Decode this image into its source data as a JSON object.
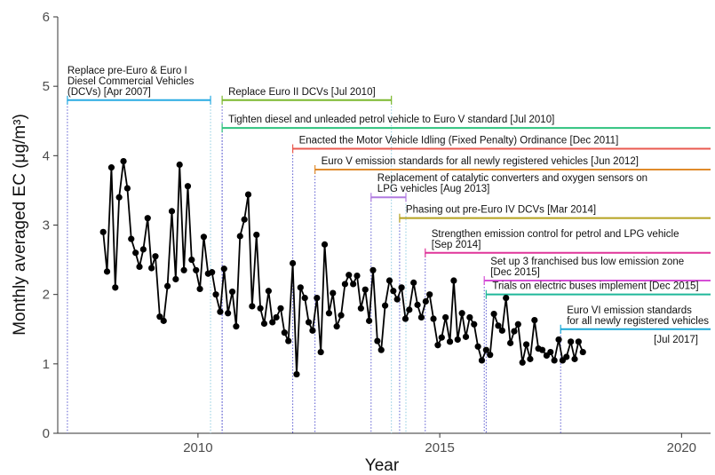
{
  "chart_data": {
    "type": "line",
    "xlabel": "Year",
    "ylabel": "Monthly averaged EC (μg/m³)",
    "xlim": [
      2007.1,
      2020.6
    ],
    "ylim": [
      0,
      6
    ],
    "xticks": [
      2010,
      2015,
      2020
    ],
    "yticks": [
      0,
      1,
      2,
      3,
      4,
      5,
      6
    ],
    "color": "#000000",
    "x": [
      2008.04,
      2008.12,
      2008.21,
      2008.29,
      2008.37,
      2008.46,
      2008.54,
      2008.62,
      2008.71,
      2008.79,
      2008.87,
      2008.96,
      2009.04,
      2009.12,
      2009.21,
      2009.29,
      2009.37,
      2009.46,
      2009.54,
      2009.62,
      2009.71,
      2009.79,
      2009.87,
      2009.96,
      2010.04,
      2010.12,
      2010.21,
      2010.29,
      2010.37,
      2010.46,
      2010.54,
      2010.62,
      2010.71,
      2010.79,
      2010.87,
      2010.96,
      2011.04,
      2011.12,
      2011.21,
      2011.29,
      2011.37,
      2011.46,
      2011.54,
      2011.62,
      2011.71,
      2011.79,
      2011.87,
      2011.96,
      2012.04,
      2012.12,
      2012.21,
      2012.29,
      2012.37,
      2012.46,
      2012.54,
      2012.62,
      2012.71,
      2012.79,
      2012.87,
      2012.96,
      2013.04,
      2013.12,
      2013.21,
      2013.29,
      2013.37,
      2013.46,
      2013.54,
      2013.62,
      2013.71,
      2013.79,
      2013.87,
      2013.96,
      2014.04,
      2014.12,
      2014.21,
      2014.29,
      2014.37,
      2014.46,
      2014.54,
      2014.62,
      2014.71,
      2014.79,
      2014.87,
      2014.96,
      2015.04,
      2015.12,
      2015.21,
      2015.29,
      2015.37,
      2015.46,
      2015.54,
      2015.62,
      2015.71,
      2015.79,
      2015.87,
      2015.96,
      2016.04,
      2016.12,
      2016.21,
      2016.29,
      2016.37,
      2016.46,
      2016.54,
      2016.62,
      2016.71,
      2016.79,
      2016.87,
      2016.96,
      2017.04,
      2017.12,
      2017.21,
      2017.29,
      2017.37,
      2017.46,
      2017.54,
      2017.62,
      2017.71,
      2017.79,
      2017.87,
      2017.96
    ],
    "values": [
      2.9,
      2.33,
      3.83,
      2.1,
      3.4,
      3.92,
      3.53,
      2.8,
      2.6,
      2.4,
      2.65,
      3.1,
      2.38,
      2.55,
      1.68,
      1.62,
      2.12,
      3.2,
      2.22,
      3.87,
      2.35,
      3.56,
      2.5,
      2.35,
      2.08,
      2.83,
      2.3,
      2.32,
      2.0,
      1.75,
      2.37,
      1.73,
      2.04,
      1.54,
      2.84,
      3.08,
      3.44,
      1.83,
      2.86,
      1.8,
      1.58,
      2.05,
      1.6,
      1.67,
      1.8,
      1.45,
      1.33,
      2.45,
      0.85,
      2.1,
      1.95,
      1.6,
      1.48,
      1.95,
      1.17,
      2.72,
      1.73,
      2.02,
      1.54,
      1.7,
      2.15,
      2.28,
      2.15,
      2.27,
      1.8,
      2.07,
      1.62,
      2.35,
      1.33,
      1.2,
      1.84,
      2.2,
      2.05,
      1.93,
      2.1,
      1.65,
      1.78,
      2.17,
      1.85,
      1.67,
      1.9,
      2.0,
      1.65,
      1.27,
      1.38,
      1.67,
      1.32,
      2.2,
      1.35,
      1.73,
      1.39,
      1.67,
      1.57,
      1.25,
      1.05,
      1.2,
      1.13,
      1.72,
      1.55,
      1.48,
      1.95,
      1.3,
      1.47,
      1.57,
      1.02,
      1.28,
      1.07,
      1.63,
      1.22,
      1.2,
      1.12,
      1.17,
      1.05,
      1.35,
      1.05,
      1.1,
      1.32,
      1.07,
      1.32,
      1.17
    ],
    "annotations": [
      {
        "lines": [
          "Replace pre-Euro & Euro I",
          "Diesel Commercial Vehicles",
          "(DCVs) [Apr 2007]"
        ],
        "start": 2007.3,
        "end": 2010.26,
        "y": 4.8,
        "color": "#29abe2"
      },
      {
        "lines": [
          "Replace Euro II DCVs [Jul 2010]"
        ],
        "start": 2010.5,
        "end": 2014.0,
        "y": 4.8,
        "color": "#7cb82f"
      },
      {
        "lines": [
          "Tighten diesel and unleaded petrol vehicle to Euro V standard [Jul 2010]"
        ],
        "start": 2010.5,
        "y": 4.4,
        "color": "#2ec27e"
      },
      {
        "lines": [
          "Enacted the Motor Vehicle Idling (Fixed Penalty) Ordinance [Dec 2011]"
        ],
        "start": 2011.96,
        "y": 4.1,
        "color": "#e9594f"
      },
      {
        "lines": [
          "Euro V emission standards for all newly registered vehicles [Jun 2012]"
        ],
        "start": 2012.42,
        "y": 3.8,
        "color": "#e08b2b"
      },
      {
        "lines": [
          "Replacement of catalytic converters and oxygen sensors on",
          "LPG vehicles [Aug 2013]"
        ],
        "start": 2013.58,
        "end": 2014.3,
        "y": 3.4,
        "color": "#b07ce0"
      },
      {
        "lines": [
          "Phasing out pre-Euro IV DCVs [Mar 2014]"
        ],
        "start": 2014.17,
        "y": 3.1,
        "color": "#b5a21f"
      },
      {
        "lines": [
          "Strengthen emission control for petrol and LPG vehicle",
          "[Sep 2014]"
        ],
        "start": 2014.7,
        "y": 2.6,
        "color": "#e0359a"
      },
      {
        "lines": [
          "Set up 3 franchised bus low emission zone",
          "[Dec 2015]"
        ],
        "start": 2015.92,
        "y": 2.2,
        "color": "#d64fd6"
      },
      {
        "lines": [
          "Trials on electric buses implement [Dec 2015]"
        ],
        "start": 2015.96,
        "y": 2.0,
        "color": "#1fb89a"
      },
      {
        "lines": [
          "Euro VI emission standards",
          "for all newly registered vehicles"
        ],
        "note_right": "[Jul 2017]",
        "start": 2017.5,
        "y": 1.5,
        "color": "#1aa8d6"
      }
    ]
  }
}
